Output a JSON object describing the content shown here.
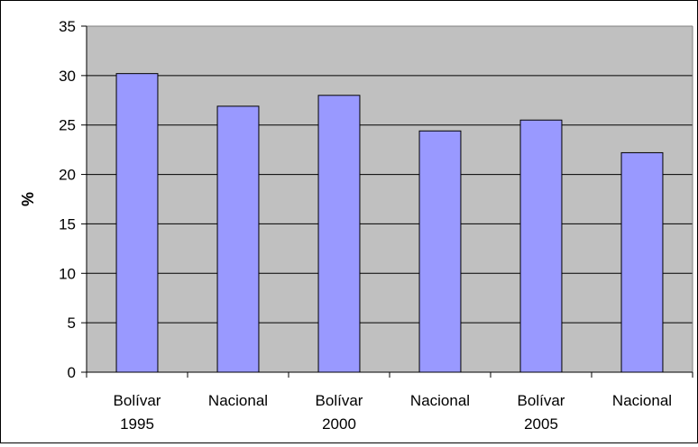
{
  "chart_data": {
    "type": "bar",
    "categories": [
      [
        "Bolívar",
        "1995"
      ],
      [
        "Nacional",
        ""
      ],
      [
        "Bolívar",
        "2000"
      ],
      [
        "Nacional",
        ""
      ],
      [
        "Bolívar",
        "2005"
      ],
      [
        "Nacional",
        ""
      ]
    ],
    "values": [
      30.2,
      26.9,
      28.0,
      24.4,
      25.5,
      22.2
    ],
    "title": "",
    "xlabel": "",
    "ylabel": "%",
    "ylim": [
      0,
      35
    ],
    "yticks": [
      0,
      5,
      10,
      15,
      20,
      25,
      30,
      35
    ],
    "grid": true,
    "legend": "none",
    "colors": {
      "bar_fill": "#9999ff",
      "bar_stroke": "#000000",
      "plot_background": "#c0c0c0",
      "gridline": "#000000"
    }
  }
}
